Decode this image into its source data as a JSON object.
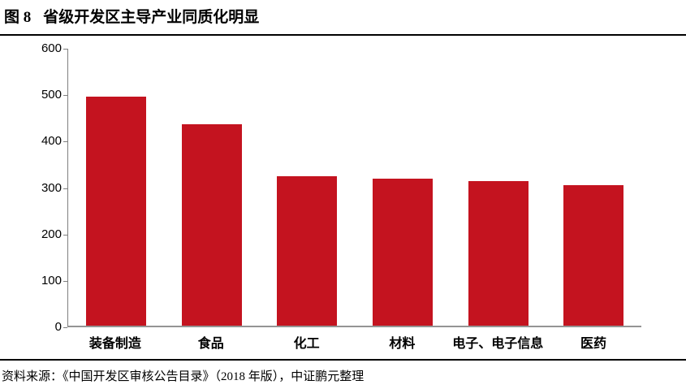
{
  "header": {
    "figure_label": "图 8",
    "figure_title": "省级开发区主导产业同质化明显"
  },
  "footer": {
    "source": "资料来源：《中国开发区审核公告目录》（2018 年版），中证鹏元整理"
  },
  "colors": {
    "bar": "#c4131f",
    "axis": "#7f7f7f",
    "rule": "#000000",
    "text": "#000000"
  },
  "chart_data": {
    "type": "bar",
    "title": "省级开发区主导产业同质化明显",
    "categories": [
      "装备制造",
      "食品",
      "化工",
      "材料",
      "电子、电子信息",
      "医药"
    ],
    "values": [
      493,
      434,
      322,
      316,
      311,
      303
    ],
    "xlabel": "",
    "ylabel": "",
    "ylim": [
      0,
      600
    ],
    "yticks": [
      0,
      100,
      200,
      300,
      400,
      500,
      600
    ],
    "grid": false,
    "legend": "none",
    "bar_color": "#c4131f",
    "axis_color": "#7f7f7f"
  }
}
